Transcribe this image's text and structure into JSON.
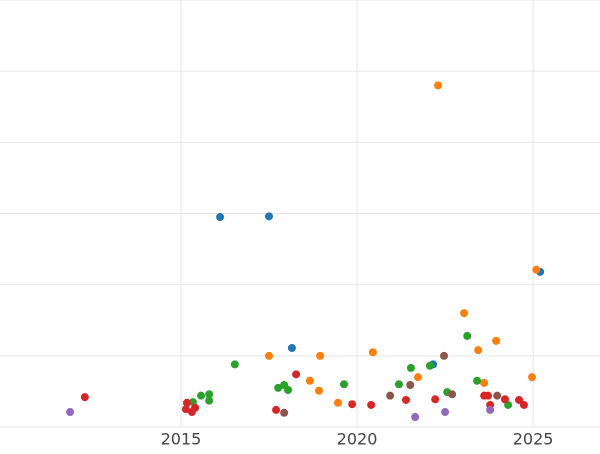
{
  "chart_data": {
    "type": "scatter",
    "xlim": [
      2009.86,
      2026.9
    ],
    "xticks": [
      2015,
      2020,
      2025
    ],
    "ylim": [
      0,
      6
    ],
    "yticks": [
      0,
      1,
      2,
      3,
      4,
      5,
      6
    ],
    "grid": true,
    "series": [
      {
        "color": "#1f77b4",
        "x": [
          2016.11,
          2017.5,
          2018.15,
          2022.16,
          2025.2
        ],
        "values": [
          2.95,
          2.96,
          1.11,
          0.88,
          2.18
        ]
      },
      {
        "color": "#ff7f0e",
        "x": [
          2022.3,
          2017.5,
          2018.95,
          2018.66,
          2018.92,
          2019.46,
          2020.45,
          2021.73,
          2023.04,
          2023.44,
          2023.61,
          2023.95,
          2025.09,
          2024.97
        ],
        "values": [
          4.8,
          1.0,
          1.0,
          0.65,
          0.51,
          0.34,
          1.05,
          0.7,
          1.6,
          1.08,
          0.62,
          1.21,
          2.21,
          0.7
        ]
      },
      {
        "color": "#2ca02c",
        "x": [
          2016.53,
          2015.34,
          2015.57,
          2015.8,
          2015.8,
          2017.76,
          2017.93,
          2018.04,
          2019.63,
          2021.19,
          2021.53,
          2022.07,
          2022.56,
          2023.13,
          2023.41,
          2024.29
        ],
        "values": [
          0.88,
          0.35,
          0.44,
          0.46,
          0.37,
          0.55,
          0.59,
          0.52,
          0.6,
          0.6,
          0.83,
          0.86,
          0.49,
          1.28,
          0.65,
          0.31
        ]
      },
      {
        "color": "#d62728",
        "x": [
          2012.27,
          2015.17,
          2015.14,
          2015.31,
          2015.4,
          2017.7,
          2018.27,
          2019.86,
          2020.4,
          2021.39,
          2022.22,
          2023.61,
          2023.72,
          2023.78,
          2024.2,
          2024.6,
          2024.74
        ],
        "values": [
          0.42,
          0.34,
          0.25,
          0.21,
          0.27,
          0.24,
          0.74,
          0.32,
          0.31,
          0.38,
          0.39,
          0.44,
          0.44,
          0.31,
          0.39,
          0.38,
          0.31
        ]
      },
      {
        "color": "#9467bd",
        "x": [
          2011.85,
          2021.65,
          2022.5,
          2023.78
        ],
        "values": [
          0.21,
          0.14,
          0.21,
          0.24
        ]
      },
      {
        "color": "#8c564b",
        "x": [
          2017.93,
          2020.94,
          2021.51,
          2022.47,
          2022.7,
          2023.98
        ],
        "values": [
          0.2,
          0.44,
          0.59,
          1.0,
          0.46,
          0.44
        ]
      }
    ]
  }
}
